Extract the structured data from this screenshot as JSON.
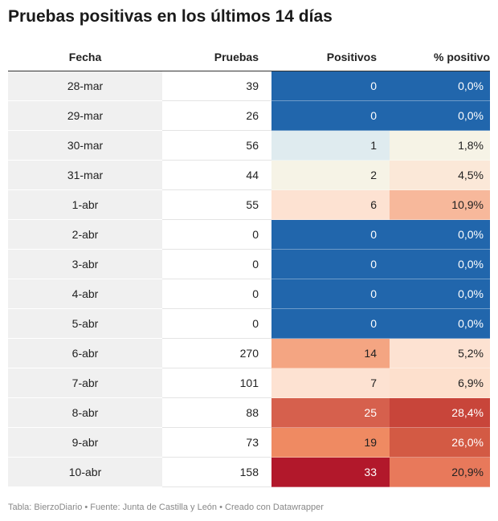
{
  "title": "Pruebas positivas en los últimos 14 días",
  "footer": "Tabla: BierzoDiario • Fuente: Junta de Castilla y León • Creado con Datawrapper",
  "chart_data": {
    "type": "table",
    "columns": [
      "Fecha",
      "Pruebas",
      "Positivos",
      "% positivo"
    ],
    "rows": [
      {
        "fecha": "28-mar",
        "pruebas": "39",
        "positivos": "0",
        "pct": "0,0%"
      },
      {
        "fecha": "29-mar",
        "pruebas": "26",
        "positivos": "0",
        "pct": "0,0%"
      },
      {
        "fecha": "30-mar",
        "pruebas": "56",
        "positivos": "1",
        "pct": "1,8%"
      },
      {
        "fecha": "31-mar",
        "pruebas": "44",
        "positivos": "2",
        "pct": "4,5%"
      },
      {
        "fecha": "1-abr",
        "pruebas": "55",
        "positivos": "6",
        "pct": "10,9%"
      },
      {
        "fecha": "2-abr",
        "pruebas": "0",
        "positivos": "0",
        "pct": "0,0%"
      },
      {
        "fecha": "3-abr",
        "pruebas": "0",
        "positivos": "0",
        "pct": "0,0%"
      },
      {
        "fecha": "4-abr",
        "pruebas": "0",
        "positivos": "0",
        "pct": "0,0%"
      },
      {
        "fecha": "5-abr",
        "pruebas": "0",
        "positivos": "0",
        "pct": "0,0%"
      },
      {
        "fecha": "6-abr",
        "pruebas": "270",
        "positivos": "14",
        "pct": "5,2%"
      },
      {
        "fecha": "7-abr",
        "pruebas": "101",
        "positivos": "7",
        "pct": "6,9%"
      },
      {
        "fecha": "8-abr",
        "pruebas": "88",
        "positivos": "25",
        "pct": "28,4%"
      },
      {
        "fecha": "9-abr",
        "pruebas": "73",
        "positivos": "19",
        "pct": "26,0%"
      },
      {
        "fecha": "10-abr",
        "pruebas": "158",
        "positivos": "33",
        "pct": "20,9%"
      }
    ],
    "cell_colors": {
      "positivos": [
        "#2166ac",
        "#2166ac",
        "#dfebef",
        "#f6f3e6",
        "#fde2d2",
        "#2166ac",
        "#2166ac",
        "#2166ac",
        "#2166ac",
        "#f4a582",
        "#fde2d2",
        "#d6604d",
        "#ef8a62",
        "#b2182b"
      ],
      "pct": [
        "#2166ac",
        "#2166ac",
        "#f6f3e6",
        "#fbe8d8",
        "#f7b89b",
        "#2166ac",
        "#2166ac",
        "#2166ac",
        "#2166ac",
        "#fde2d2",
        "#fde0cd",
        "#c8453a",
        "#d35a44",
        "#e8795b"
      ]
    }
  }
}
